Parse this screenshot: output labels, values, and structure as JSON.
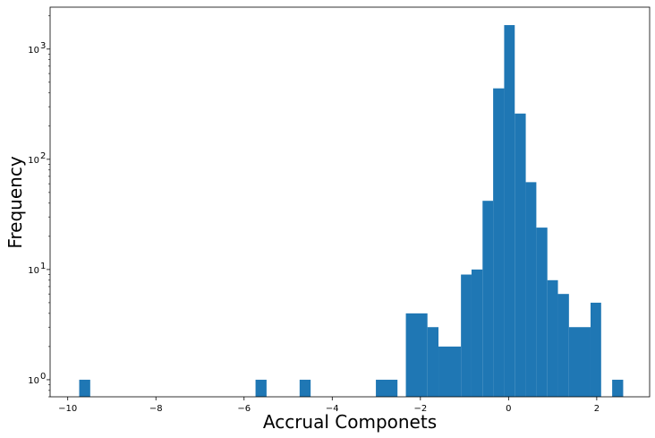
{
  "chart_data": {
    "type": "bar",
    "subtype": "histogram",
    "title": "",
    "xlabel": "Accrual Componets",
    "ylabel": "Frequency",
    "yscale": "log",
    "xlim": [
      -10.4,
      3.2
    ],
    "ylim": [
      0.7,
      2400
    ],
    "grid": false,
    "legend": "none",
    "bar_color": "#1f77b4",
    "x_ticks": [
      -10,
      -8,
      -6,
      -4,
      -2,
      0,
      2
    ],
    "x_tick_labels": [
      "−10",
      "−8",
      "−6",
      "−4",
      "−2",
      "0",
      "2"
    ],
    "y_ticks": [
      1,
      10,
      100,
      1000
    ],
    "y_tick_labels": [
      "10",
      "10",
      "10",
      "10"
    ],
    "y_tick_exponents": [
      "0",
      "1",
      "2",
      "3"
    ],
    "bins": [
      {
        "x0": -9.74,
        "x1": -9.49,
        "count": 1
      },
      {
        "x0": -5.74,
        "x1": -5.49,
        "count": 1
      },
      {
        "x0": -4.74,
        "x1": -4.49,
        "count": 1
      },
      {
        "x0": -3.01,
        "x1": -2.52,
        "count": 1
      },
      {
        "x0": -2.33,
        "x1": -1.84,
        "count": 4
      },
      {
        "x0": -1.84,
        "x1": -1.59,
        "count": 3
      },
      {
        "x0": -1.59,
        "x1": -1.08,
        "count": 2
      },
      {
        "x0": -1.08,
        "x1": -0.84,
        "count": 9
      },
      {
        "x0": -0.84,
        "x1": -0.59,
        "count": 10
      },
      {
        "x0": -0.59,
        "x1": -0.35,
        "count": 42
      },
      {
        "x0": -0.35,
        "x1": -0.1,
        "count": 440
      },
      {
        "x0": -0.1,
        "x1": 0.14,
        "count": 1650
      },
      {
        "x0": 0.14,
        "x1": 0.39,
        "count": 260
      },
      {
        "x0": 0.39,
        "x1": 0.63,
        "count": 62
      },
      {
        "x0": 0.63,
        "x1": 0.88,
        "count": 24
      },
      {
        "x0": 0.88,
        "x1": 1.12,
        "count": 8
      },
      {
        "x0": 1.12,
        "x1": 1.37,
        "count": 6
      },
      {
        "x0": 1.37,
        "x1": 1.86,
        "count": 3
      },
      {
        "x0": 1.86,
        "x1": 2.1,
        "count": 5
      },
      {
        "x0": 2.35,
        "x1": 2.6,
        "count": 1
      }
    ]
  }
}
